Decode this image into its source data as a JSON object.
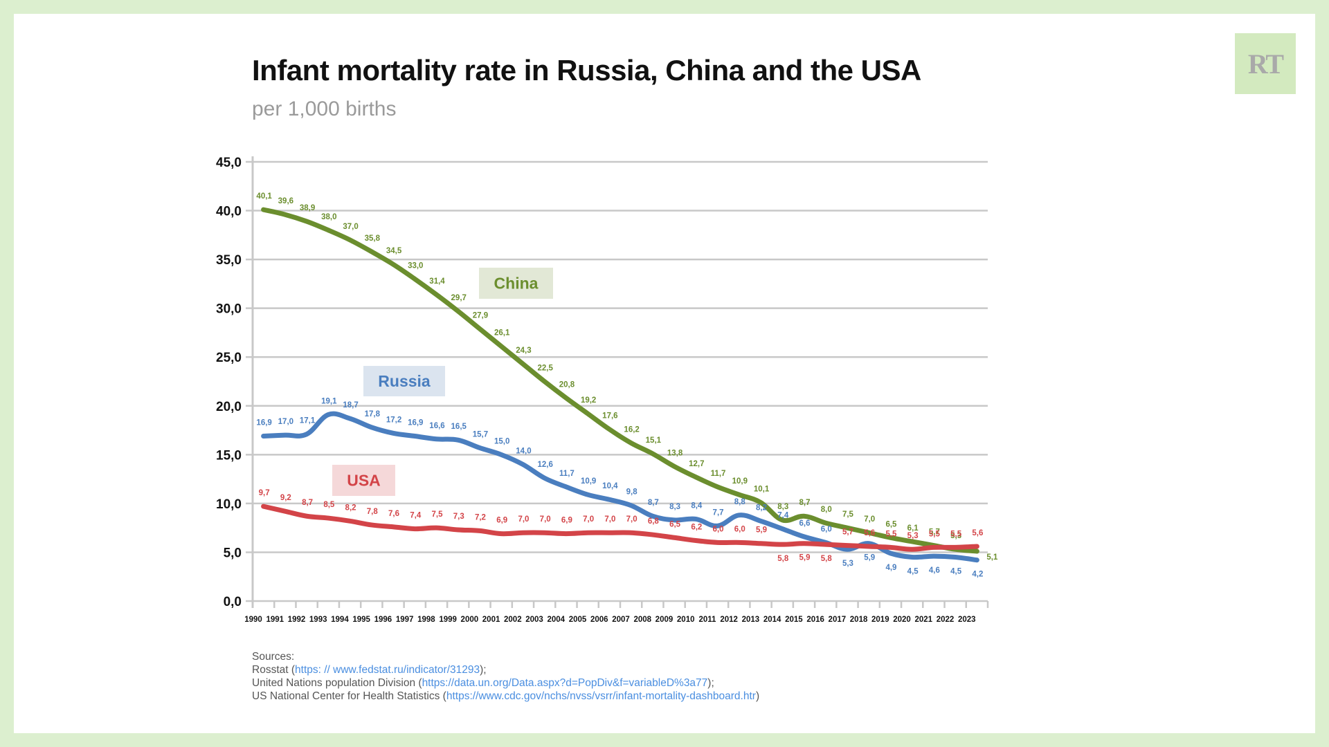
{
  "header": {
    "title": "Infant mortality rate in Russia, China and the USA",
    "subtitle": "per 1,000 births",
    "logo_text": "RT"
  },
  "colors": {
    "background": "#dcefcf",
    "china": "#6b8e2e",
    "russia": "#4a7ebf",
    "usa": "#d34448",
    "china_box": "#e2e8d6",
    "russia_box": "#dbe4ef",
    "usa_box": "#f5d8d9",
    "grid": "#c8c8c8"
  },
  "chart_data": {
    "type": "line",
    "title": "Infant mortality rate in Russia, China and the USA",
    "subtitle": "per 1,000 births",
    "xlabel": "",
    "ylabel": "",
    "ylim": [
      0,
      45
    ],
    "yticks": [
      "0,0",
      "5,0",
      "10,0",
      "15,0",
      "20,0",
      "25,0",
      "30,0",
      "35,0",
      "40,0",
      "45,0"
    ],
    "ytick_values": [
      0,
      5,
      10,
      15,
      20,
      25,
      30,
      35,
      40,
      45
    ],
    "grid": true,
    "legend": "inline labels",
    "x": [
      "1990",
      "1991",
      "1992",
      "1993",
      "1994",
      "1995",
      "1996",
      "1997",
      "1998",
      "1999",
      "2000",
      "2001",
      "2002",
      "2003",
      "2004",
      "2005",
      "2006",
      "2007",
      "2008",
      "2009",
      "2010",
      "2011",
      "2012",
      "2013",
      "2014",
      "2015",
      "2016",
      "2017",
      "2018",
      "2019",
      "2020",
      "2021",
      "2022",
      "2023"
    ],
    "series": [
      {
        "name": "China",
        "key": "china",
        "values": [
          40.1,
          39.6,
          38.9,
          38.0,
          37.0,
          35.8,
          34.5,
          33.0,
          31.4,
          29.7,
          27.9,
          26.1,
          24.3,
          22.5,
          20.8,
          19.2,
          17.6,
          16.2,
          15.1,
          13.8,
          12.7,
          11.7,
          10.9,
          10.1,
          8.3,
          8.7,
          8.0,
          7.5,
          7.0,
          6.5,
          6.1,
          5.7,
          5.3,
          5.1
        ],
        "labels": [
          "40,1",
          "39,6",
          "38,9",
          "38,0",
          "37,0",
          "35,8",
          "34,5",
          "33,0",
          "31,4",
          "29,7",
          "27,9",
          "26,1",
          "24,3",
          "22,5",
          "20,8",
          "19,2",
          "17,6",
          "16,2",
          "15,1",
          "13,8",
          "12,7",
          "11,7",
          "10,9",
          "10,1",
          "8,3",
          "8,7",
          "8,0",
          "7,5",
          "7,0",
          "6,5",
          "6,1",
          "5,7",
          "5,3",
          "5,1"
        ]
      },
      {
        "name": "Russia",
        "key": "russia",
        "values": [
          16.9,
          17.0,
          17.1,
          19.1,
          18.7,
          17.8,
          17.2,
          16.9,
          16.6,
          16.5,
          15.7,
          15.0,
          14.0,
          12.6,
          11.7,
          10.9,
          10.4,
          9.8,
          8.7,
          8.3,
          8.4,
          7.7,
          8.8,
          8.2,
          7.4,
          6.6,
          6.0,
          5.3,
          5.9,
          4.9,
          4.5,
          4.6,
          4.5,
          4.2
        ],
        "labels": [
          "16,9",
          "17,0",
          "17,1",
          "19,1",
          "18,7",
          "17,8",
          "17,2",
          "16,9",
          "16,6",
          "16,5",
          "15,7",
          "15,0",
          "14,0",
          "12,6",
          "11,7",
          "10,9",
          "10,4",
          "9,8",
          "8,7",
          "8,3",
          "8,4",
          "7,7",
          "8,8",
          "8,2",
          "7,4",
          "6,6",
          "6,0",
          "5,3",
          "5,9",
          "4,9",
          "4,5",
          "4,6",
          "4,5",
          "4,2"
        ]
      },
      {
        "name": "USA",
        "key": "usa",
        "values": [
          9.7,
          9.2,
          8.7,
          8.5,
          8.2,
          7.8,
          7.6,
          7.4,
          7.5,
          7.3,
          7.2,
          6.9,
          7.0,
          7.0,
          6.9,
          7.0,
          7.0,
          7.0,
          6.8,
          6.5,
          6.2,
          6.0,
          6.0,
          5.9,
          5.8,
          5.9,
          5.8,
          5.7,
          5.6,
          5.5,
          5.3,
          5.5,
          5.5,
          5.6
        ],
        "labels": [
          "9,7",
          "9,2",
          "8,7",
          "8,5",
          "8,2",
          "7,8",
          "7,6",
          "7,4",
          "7,5",
          "7,3",
          "7,2",
          "6,9",
          "7,0",
          "7,0",
          "6,9",
          "7,0",
          "7,0",
          "7,0",
          "6,8",
          "6,5",
          "6,2",
          "6,0",
          "6,0",
          "5,9",
          "5,8",
          "5,9",
          "5,8",
          "5,7",
          "5,6",
          "5,5",
          "5,3",
          "5,5",
          "5,5",
          "5,6"
        ]
      }
    ],
    "series_tags": {
      "china": "China",
      "russia": "Russia",
      "usa": "USA"
    }
  },
  "sources": {
    "heading": "Sources:",
    "items": [
      {
        "name": "Rosstat  (",
        "link": "https: // www.fedstat.ru/indicator/31293",
        "suffix": ");"
      },
      {
        "name": "United Nations population Division (",
        "link": "https://data.un.org/Data.aspx?d=PopDiv&f=variableD%3a77",
        "suffix": ");"
      },
      {
        "name": "US National Center for Health Statistics (",
        "link": "https://www.cdc.gov/nchs/nvss/vsrr/infant-mortality-dashboard.htr",
        "suffix": ")"
      }
    ]
  }
}
